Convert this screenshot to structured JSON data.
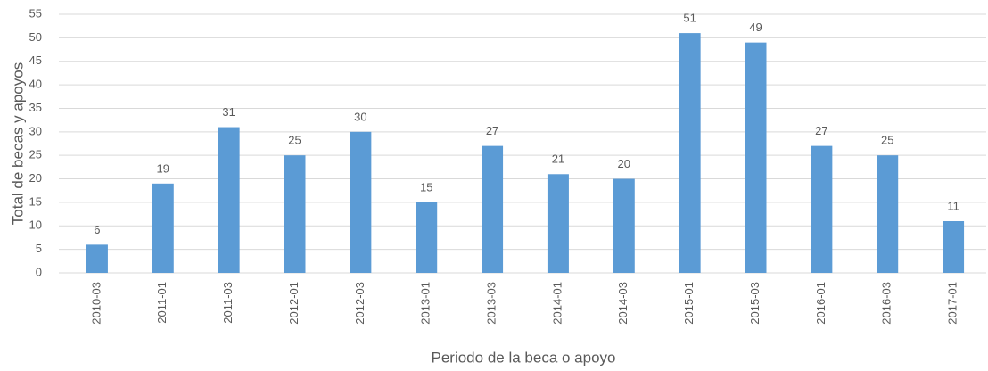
{
  "chart_data": {
    "type": "bar",
    "x_label": "Periodo de la beca o apoyo",
    "y_label": "Total de becas y apoyos",
    "categories": [
      "2010-03",
      "2011-01",
      "2011-03",
      "2012-01",
      "2012-03",
      "2013-01",
      "2013-03",
      "2014-01",
      "2014-03",
      "2015-01",
      "2015-03",
      "2016-01",
      "2016-03",
      "2017-01"
    ],
    "values": [
      6,
      19,
      31,
      25,
      30,
      15,
      27,
      21,
      20,
      51,
      49,
      27,
      25,
      11
    ],
    "color": "#5b9bd5",
    "ylim": [
      0,
      55
    ],
    "yticks": [
      0,
      5,
      10,
      15,
      20,
      25,
      30,
      35,
      40,
      45,
      50,
      55
    ],
    "grid": true,
    "data_labels": true
  }
}
